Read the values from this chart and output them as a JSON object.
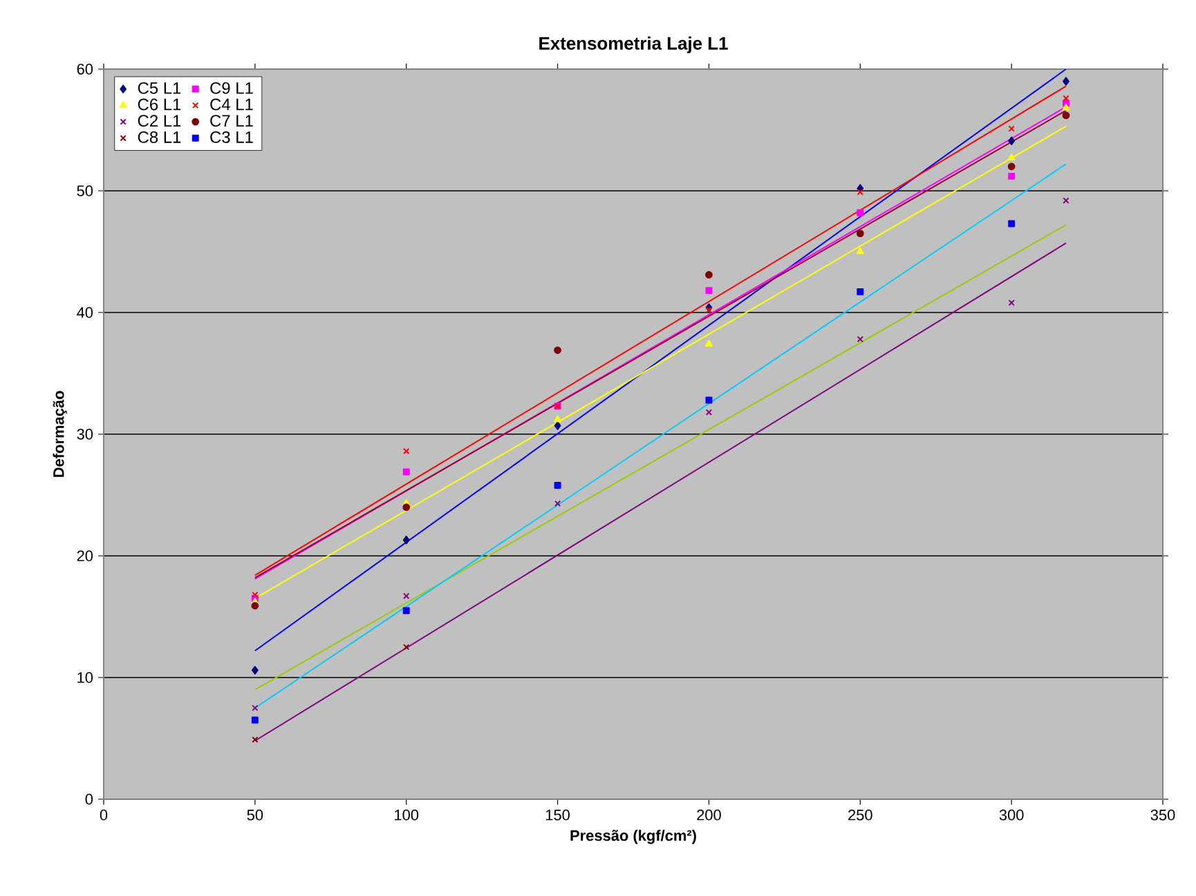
{
  "chart_data": {
    "type": "scatter",
    "title": "Extensometria Laje L1",
    "xlabel": "Pressão (kgf/cm²)",
    "ylabel": "Deformação",
    "x": [
      50,
      100,
      150,
      200,
      250,
      300,
      318
    ],
    "xlim": [
      0,
      350
    ],
    "xticks": [
      0,
      50,
      100,
      150,
      200,
      250,
      300,
      350
    ],
    "ylim": [
      0,
      60
    ],
    "yticks": [
      0,
      10,
      20,
      30,
      40,
      50,
      60
    ],
    "grid": "y",
    "legend": "top left",
    "series": [
      {
        "name": "C5 L1",
        "color": "#000080",
        "marker": "diamond",
        "values": [
          10.6,
          21.3,
          30.7,
          40.4,
          50.2,
          54.1,
          59.0
        ]
      },
      {
        "name": "C9 L1",
        "color": "#ff00ff",
        "marker": "square",
        "values": [
          16.5,
          26.9,
          32.3,
          41.8,
          48.2,
          51.2,
          57.2
        ]
      },
      {
        "name": "C6 L1",
        "color": "#ffff00",
        "marker": "triangle",
        "values": [
          16.2,
          24.3,
          31.2,
          37.4,
          45.0,
          52.7,
          56.8
        ]
      },
      {
        "name": "C4 L1",
        "color": "#ff0000",
        "marker": "cross",
        "values": [
          16.8,
          28.6,
          32.3,
          40.2,
          49.9,
          55.1,
          57.6
        ]
      },
      {
        "name": "C2 L1",
        "color": "#800080",
        "marker": "cross",
        "values": [
          7.5,
          16.7,
          24.3,
          31.8,
          37.8,
          40.8,
          49.2
        ]
      },
      {
        "name": "C7 L1",
        "color": "#800000",
        "marker": "circle",
        "values": [
          15.9,
          24.0,
          36.9,
          43.1,
          46.5,
          52.0,
          56.2
        ]
      },
      {
        "name": "C8 L1",
        "color": "#800000",
        "marker": "cross",
        "values": [
          4.9,
          12.5,
          null,
          null,
          null,
          null,
          null
        ]
      },
      {
        "name": "C3 L1",
        "color": "#0000ff",
        "marker": "square",
        "values": [
          6.5,
          15.5,
          25.8,
          32.8,
          41.7,
          47.3,
          null
        ]
      },
      {
        "type": "line",
        "color": "#0000ff",
        "marker": "none",
        "values": [
          12.2,
          null,
          null,
          null,
          null,
          null,
          60.0
        ]
      },
      {
        "type": "line",
        "color": "#ff00ff",
        "marker": "none",
        "values": [
          18.1,
          null,
          null,
          null,
          null,
          null,
          56.9
        ]
      },
      {
        "type": "line",
        "color": "#ffff00",
        "marker": "none",
        "values": [
          16.5,
          null,
          null,
          null,
          null,
          null,
          55.3
        ]
      },
      {
        "type": "line",
        "color": "#ff0000",
        "marker": "none",
        "values": [
          18.4,
          null,
          null,
          null,
          null,
          null,
          58.6
        ]
      },
      {
        "type": "line",
        "color": "#99cc00",
        "marker": "none",
        "values": [
          9.0,
          null,
          null,
          null,
          null,
          null,
          47.2
        ]
      },
      {
        "type": "line",
        "color": "#990033",
        "marker": "none",
        "values": [
          18.2,
          null,
          null,
          null,
          null,
          null,
          56.6
        ]
      },
      {
        "type": "line",
        "color": "#800080",
        "marker": "none",
        "values": [
          4.8,
          null,
          null,
          null,
          null,
          null,
          45.7
        ]
      },
      {
        "type": "line",
        "color": "#00ccff",
        "marker": "none",
        "values": [
          7.5,
          null,
          null,
          null,
          null,
          null,
          52.2
        ]
      }
    ]
  }
}
